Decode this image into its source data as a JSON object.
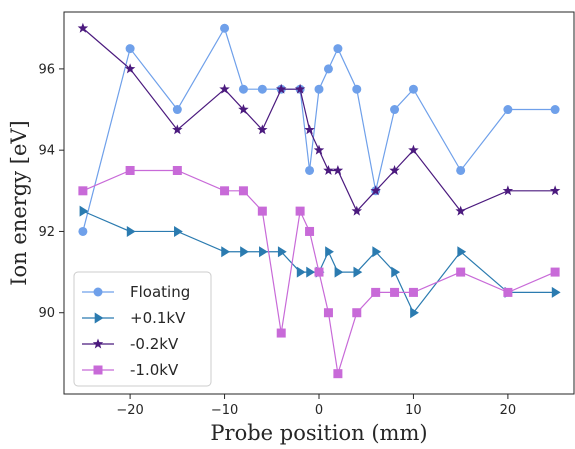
{
  "chart_data": {
    "type": "line",
    "xlabel": "Probe position (mm)",
    "ylabel": "Ion energy [eV]",
    "xlim": [
      -27,
      27
    ],
    "ylim": [
      88,
      97.4
    ],
    "xticks": [
      -20,
      -10,
      0,
      10,
      20
    ],
    "yticks": [
      90,
      92,
      94,
      96
    ],
    "x_tick_labels": [
      "−20",
      "−10",
      "0",
      "10",
      "20"
    ],
    "y_tick_labels": [
      "90",
      "92",
      "94",
      "96"
    ],
    "grid": false,
    "legend_position": "lower-left",
    "series": [
      {
        "name": "Floating",
        "color": "#6fa0ea",
        "marker": "circle",
        "x": [
          -25,
          -20,
          -15,
          -10,
          -8,
          -6,
          -4,
          -2,
          -1,
          0,
          1,
          2,
          4,
          6,
          8,
          10,
          15,
          20,
          25
        ],
        "y": [
          92,
          96.5,
          95,
          97,
          95.5,
          95.5,
          95.5,
          95.5,
          93.5,
          95.5,
          96,
          96.5,
          95.5,
          93,
          95,
          95.5,
          93.5,
          95,
          95
        ]
      },
      {
        "name": "+0.1kV",
        "color": "#2b7bb0",
        "marker": "triangle-right",
        "x": [
          -25,
          -20,
          -15,
          -10,
          -8,
          -6,
          -4,
          -2,
          -1,
          0,
          1,
          2,
          4,
          6,
          8,
          10,
          15,
          20,
          25
        ],
        "y": [
          92.5,
          92,
          92,
          91.5,
          91.5,
          91.5,
          91.5,
          91,
          91,
          91,
          91.5,
          91,
          91,
          91.5,
          91,
          90,
          91.5,
          90.5,
          90.5
        ]
      },
      {
        "name": "-0.2kV",
        "color": "#4b1a7e",
        "marker": "star",
        "x": [
          -25,
          -20,
          -15,
          -10,
          -8,
          -6,
          -4,
          -2,
          -1,
          0,
          1,
          2,
          4,
          6,
          8,
          10,
          15,
          20,
          25
        ],
        "y": [
          97,
          96,
          94.5,
          95.5,
          95,
          94.5,
          95.5,
          95.5,
          94.5,
          94,
          93.5,
          93.5,
          92.5,
          93,
          93.5,
          94,
          92.5,
          93,
          93
        ]
      },
      {
        "name": "-1.0kV",
        "color": "#c86ad8",
        "marker": "square",
        "x": [
          -25,
          -20,
          -15,
          -10,
          -8,
          -6,
          -4,
          -2,
          -1,
          0,
          1,
          2,
          4,
          6,
          8,
          10,
          15,
          20,
          25
        ],
        "y": [
          93,
          93.5,
          93.5,
          93,
          93,
          92.5,
          89.5,
          92.5,
          92,
          91,
          90,
          88.5,
          90,
          90.5,
          90.5,
          90.5,
          91,
          90.5,
          91
        ]
      }
    ]
  }
}
